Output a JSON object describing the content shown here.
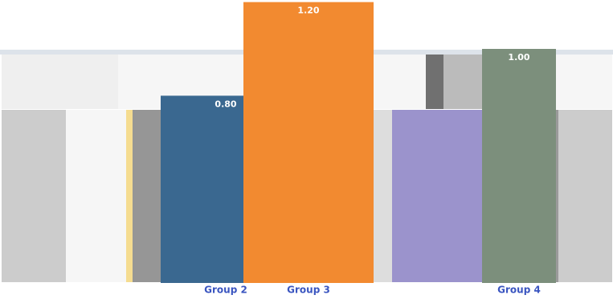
{
  "chart_data": {
    "type": "bar",
    "categories": [
      "Group 2",
      "Group 3",
      "Group 4"
    ],
    "series": [
      {
        "colors": [
          "#3a6890",
          "#f28a30",
          "#7c8f7c"
        ],
        "values": [
          0.8,
          1.2,
          1.0
        ],
        "value_labels": [
          "0.80",
          "1.20",
          "1.00"
        ]
      }
    ]
  }
}
